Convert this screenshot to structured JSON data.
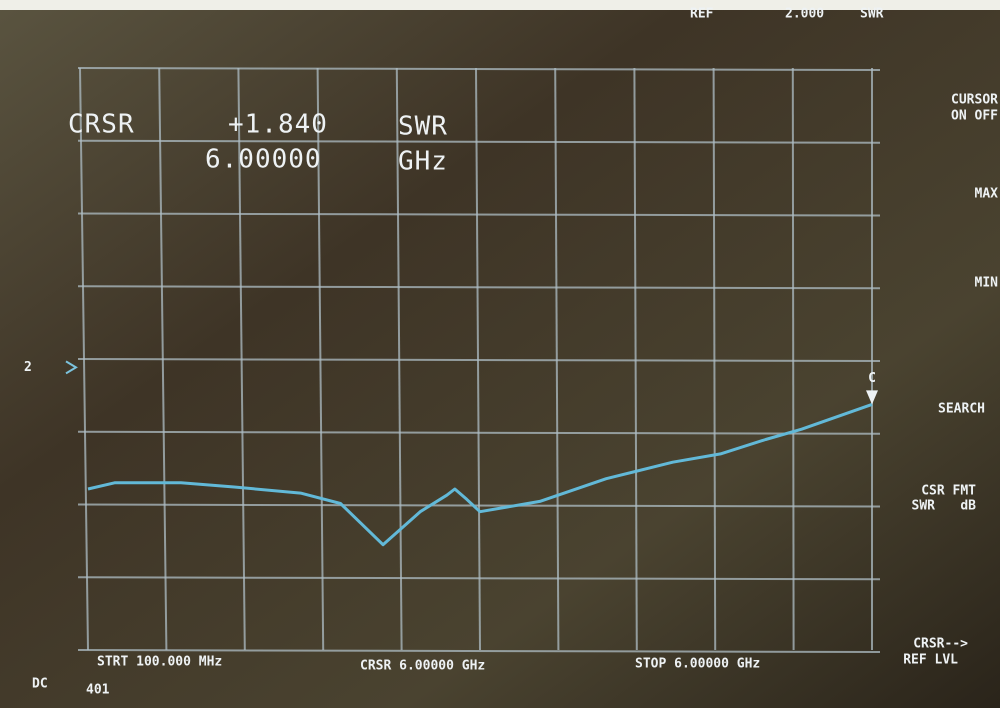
{
  "chart_data": {
    "type": "line",
    "x": [
      0.1,
      0.3,
      0.8,
      1.2,
      1.7,
      2.0,
      2.32,
      2.6,
      2.8,
      2.86,
      2.95,
      3.05,
      3.5,
      4.0,
      4.5,
      4.86,
      5.2,
      5.47,
      6.0
    ],
    "values": [
      1.43,
      1.46,
      1.46,
      1.44,
      1.41,
      1.36,
      1.16,
      1.32,
      1.4,
      1.43,
      1.38,
      1.32,
      1.37,
      1.48,
      1.56,
      1.6,
      1.67,
      1.72,
      1.84
    ],
    "color": "#62b9d8",
    "xlim": [
      0.1,
      6.0
    ],
    "ylim": [
      0.65,
      3.47
    ],
    "grid": true,
    "ref": {
      "label": "REF",
      "value_label": "2.000",
      "unit": "SWR",
      "value": 2.0,
      "marker": "2"
    },
    "cursor": {
      "label": "CRSR",
      "value_label": "+1.840",
      "unit": "SWR",
      "x_label": "6.00000",
      "x_unit": "GHz",
      "value": 1.84,
      "x": 6.0,
      "marker": "C"
    },
    "footer": {
      "start": "STRT 100.000 MHz",
      "cursor": "CRSR 6.00000 GHz",
      "stop": "STOP 6.00000 GHz",
      "coupling": "DC",
      "points": "401"
    },
    "softkeys": [
      "CURSOR",
      "ON OFF",
      "MAX",
      "MIN",
      "SEARCH",
      "CSR FMT",
      "SWR",
      "dB",
      "CRSR-->",
      "REF LVL"
    ]
  }
}
